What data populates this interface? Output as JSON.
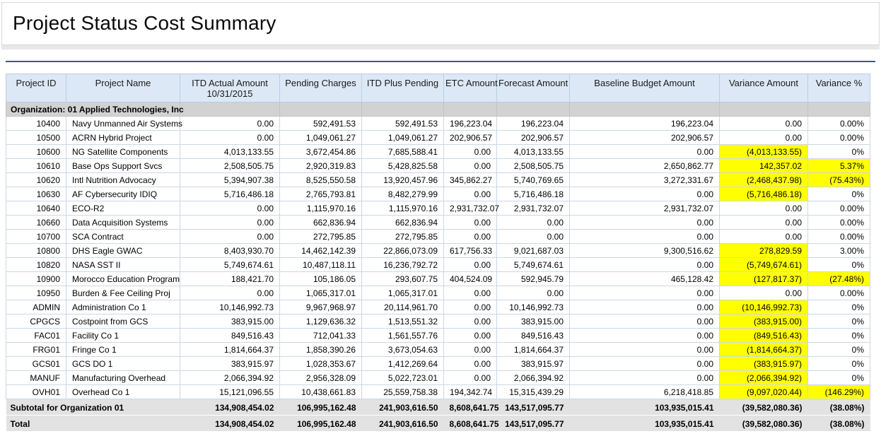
{
  "page": {
    "title": "Project Status Cost Summary"
  },
  "colors": {
    "highlight": "#ffff00",
    "header_bg": "#dce8f5",
    "accent_line": "#2d607e",
    "org_band": "#d2d2d2",
    "summary_band": "#e2e2e2"
  },
  "table": {
    "org_header": "Organization: 01 Applied Technologies, Inc",
    "columns": [
      {
        "label": "Project ID",
        "sublabel": ""
      },
      {
        "label": "Project Name",
        "sublabel": ""
      },
      {
        "label": "ITD Actual Amount",
        "sublabel": "10/31/2015"
      },
      {
        "label": "Pending Charges",
        "sublabel": ""
      },
      {
        "label": "ITD Plus Pending",
        "sublabel": ""
      },
      {
        "label": "ETC Amount",
        "sublabel": ""
      },
      {
        "label": "Forecast Amount",
        "sublabel": ""
      },
      {
        "label": "Baseline Budget Amount",
        "sublabel": ""
      },
      {
        "label": "Variance Amount",
        "sublabel": ""
      },
      {
        "label": "Variance %",
        "sublabel": ""
      }
    ],
    "rows": [
      {
        "project_id": "10400",
        "project_name": "Navy Unmanned Air Systems",
        "itd_actual": "0.00",
        "pending_charges": "592,491.53",
        "itd_plus_pending": "592,491.53",
        "etc_amount": "196,223.04",
        "forecast": "196,223.04",
        "baseline_budget": "196,223.04",
        "variance_amount": "0.00",
        "variance_pct": "0.00%",
        "variance_highlight": false,
        "pct_highlight": false
      },
      {
        "project_id": "10500",
        "project_name": "ACRN Hybrid Project",
        "itd_actual": "0.00",
        "pending_charges": "1,049,061.27",
        "itd_plus_pending": "1,049,061.27",
        "etc_amount": "202,906.57",
        "forecast": "202,906.57",
        "baseline_budget": "202,906.57",
        "variance_amount": "0.00",
        "variance_pct": "0.00%",
        "variance_highlight": false,
        "pct_highlight": false
      },
      {
        "project_id": "10600",
        "project_name": "NG Satellite Components",
        "itd_actual": "4,013,133.55",
        "pending_charges": "3,672,454.86",
        "itd_plus_pending": "7,685,588.41",
        "etc_amount": "0.00",
        "forecast": "4,013,133.55",
        "baseline_budget": "0.00",
        "variance_amount": "(4,013,133.55)",
        "variance_pct": "0%",
        "variance_highlight": true,
        "pct_highlight": false
      },
      {
        "project_id": "10610",
        "project_name": "Base Ops Support Svcs",
        "itd_actual": "2,508,505.75",
        "pending_charges": "2,920,319.83",
        "itd_plus_pending": "5,428,825.58",
        "etc_amount": "0.00",
        "forecast": "2,508,505.75",
        "baseline_budget": "2,650,862.77",
        "variance_amount": "142,357.02",
        "variance_pct": "5.37%",
        "variance_highlight": true,
        "pct_highlight": true
      },
      {
        "project_id": "10620",
        "project_name": "Intl Nutrition Advocacy",
        "itd_actual": "5,394,907.38",
        "pending_charges": "8,525,550.58",
        "itd_plus_pending": "13,920,457.96",
        "etc_amount": "345,862.27",
        "forecast": "5,740,769.65",
        "baseline_budget": "3,272,331.67",
        "variance_amount": "(2,468,437.98)",
        "variance_pct": "(75.43%)",
        "variance_highlight": true,
        "pct_highlight": true
      },
      {
        "project_id": "10630",
        "project_name": "AF Cybersecurity IDIQ",
        "itd_actual": "5,716,486.18",
        "pending_charges": "2,765,793.81",
        "itd_plus_pending": "8,482,279.99",
        "etc_amount": "0.00",
        "forecast": "5,716,486.18",
        "baseline_budget": "0.00",
        "variance_amount": "(5,716,486.18)",
        "variance_pct": "0%",
        "variance_highlight": true,
        "pct_highlight": false
      },
      {
        "project_id": "10640",
        "project_name": "ECO-R2",
        "itd_actual": "0.00",
        "pending_charges": "1,115,970.16",
        "itd_plus_pending": "1,115,970.16",
        "etc_amount": "2,931,732.07",
        "forecast": "2,931,732.07",
        "baseline_budget": "2,931,732.07",
        "variance_amount": "0.00",
        "variance_pct": "0.00%",
        "variance_highlight": false,
        "pct_highlight": false
      },
      {
        "project_id": "10660",
        "project_name": "Data Acquisition Systems",
        "itd_actual": "0.00",
        "pending_charges": "662,836.94",
        "itd_plus_pending": "662,836.94",
        "etc_amount": "0.00",
        "forecast": "0.00",
        "baseline_budget": "0.00",
        "variance_amount": "0.00",
        "variance_pct": "0.00%",
        "variance_highlight": false,
        "pct_highlight": false
      },
      {
        "project_id": "10700",
        "project_name": "SCA Contract",
        "itd_actual": "0.00",
        "pending_charges": "272,795.85",
        "itd_plus_pending": "272,795.85",
        "etc_amount": "0.00",
        "forecast": "0.00",
        "baseline_budget": "0.00",
        "variance_amount": "0.00",
        "variance_pct": "0.00%",
        "variance_highlight": false,
        "pct_highlight": false
      },
      {
        "project_id": "10800",
        "project_name": "DHS Eagle GWAC",
        "itd_actual": "8,403,930.70",
        "pending_charges": "14,462,142.39",
        "itd_plus_pending": "22,866,073.09",
        "etc_amount": "617,756.33",
        "forecast": "9,021,687.03",
        "baseline_budget": "9,300,516.62",
        "variance_amount": "278,829.59",
        "variance_pct": "3.00%",
        "variance_highlight": true,
        "pct_highlight": false
      },
      {
        "project_id": "10820",
        "project_name": "NASA SST II",
        "itd_actual": "5,749,674.61",
        "pending_charges": "10,487,118.11",
        "itd_plus_pending": "16,236,792.72",
        "etc_amount": "0.00",
        "forecast": "5,749,674.61",
        "baseline_budget": "0.00",
        "variance_amount": "(5,749,674.61)",
        "variance_pct": "0%",
        "variance_highlight": true,
        "pct_highlight": false
      },
      {
        "project_id": "10900",
        "project_name": "Morocco Education Program",
        "itd_actual": "188,421.70",
        "pending_charges": "105,186.05",
        "itd_plus_pending": "293,607.75",
        "etc_amount": "404,524.09",
        "forecast": "592,945.79",
        "baseline_budget": "465,128.42",
        "variance_amount": "(127,817.37)",
        "variance_pct": "(27.48%)",
        "variance_highlight": true,
        "pct_highlight": true
      },
      {
        "project_id": "10950",
        "project_name": "Burden & Fee Ceiling Proj",
        "itd_actual": "0.00",
        "pending_charges": "1,065,317.01",
        "itd_plus_pending": "1,065,317.01",
        "etc_amount": "0.00",
        "forecast": "0.00",
        "baseline_budget": "0.00",
        "variance_amount": "0.00",
        "variance_pct": "0.00%",
        "variance_highlight": false,
        "pct_highlight": false
      },
      {
        "project_id": "ADMIN",
        "project_name": "Administration Co 1",
        "itd_actual": "10,146,992.73",
        "pending_charges": "9,967,968.97",
        "itd_plus_pending": "20,114,961.70",
        "etc_amount": "0.00",
        "forecast": "10,146,992.73",
        "baseline_budget": "0.00",
        "variance_amount": "(10,146,992.73)",
        "variance_pct": "0%",
        "variance_highlight": true,
        "pct_highlight": false
      },
      {
        "project_id": "CPGCS",
        "project_name": "Costpoint from GCS",
        "itd_actual": "383,915.00",
        "pending_charges": "1,129,636.32",
        "itd_plus_pending": "1,513,551.32",
        "etc_amount": "0.00",
        "forecast": "383,915.00",
        "baseline_budget": "0.00",
        "variance_amount": "(383,915.00)",
        "variance_pct": "0%",
        "variance_highlight": true,
        "pct_highlight": false
      },
      {
        "project_id": "FAC01",
        "project_name": "Facility Co 1",
        "itd_actual": "849,516.43",
        "pending_charges": "712,041.33",
        "itd_plus_pending": "1,561,557.76",
        "etc_amount": "0.00",
        "forecast": "849,516.43",
        "baseline_budget": "0.00",
        "variance_amount": "(849,516.43)",
        "variance_pct": "0%",
        "variance_highlight": true,
        "pct_highlight": false
      },
      {
        "project_id": "FRG01",
        "project_name": "Fringe Co 1",
        "itd_actual": "1,814,664.37",
        "pending_charges": "1,858,390.26",
        "itd_plus_pending": "3,673,054.63",
        "etc_amount": "0.00",
        "forecast": "1,814,664.37",
        "baseline_budget": "0.00",
        "variance_amount": "(1,814,664.37)",
        "variance_pct": "0%",
        "variance_highlight": true,
        "pct_highlight": false
      },
      {
        "project_id": "GCS01",
        "project_name": "GCS DO 1",
        "itd_actual": "383,915.97",
        "pending_charges": "1,028,353.67",
        "itd_plus_pending": "1,412,269.64",
        "etc_amount": "0.00",
        "forecast": "383,915.97",
        "baseline_budget": "0.00",
        "variance_amount": "(383,915.97)",
        "variance_pct": "0%",
        "variance_highlight": true,
        "pct_highlight": false
      },
      {
        "project_id": "MANUF",
        "project_name": "Manufacturing Overhead",
        "itd_actual": "2,066,394.92",
        "pending_charges": "2,956,328.09",
        "itd_plus_pending": "5,022,723.01",
        "etc_amount": "0.00",
        "forecast": "2,066,394.92",
        "baseline_budget": "0.00",
        "variance_amount": "(2,066,394.92)",
        "variance_pct": "0%",
        "variance_highlight": true,
        "pct_highlight": false
      },
      {
        "project_id": "OVH01",
        "project_name": "Overhead Co 1",
        "itd_actual": "15,121,096.55",
        "pending_charges": "10,438,661.83",
        "itd_plus_pending": "25,559,758.38",
        "etc_amount": "194,342.74",
        "forecast": "15,315,439.29",
        "baseline_budget": "6,218,418.85",
        "variance_amount": "(9,097,020.44)",
        "variance_pct": "(146.29%)",
        "variance_highlight": true,
        "pct_highlight": true
      }
    ],
    "subtotal": {
      "label": "Subtotal for Organization 01",
      "itd_actual": "134,908,454.02",
      "pending_charges": "106,995,162.48",
      "itd_plus_pending": "241,903,616.50",
      "etc_amount": "8,608,641.75",
      "forecast": "143,517,095.77",
      "baseline_budget": "103,935,015.41",
      "variance_amount": "(39,582,080.36)",
      "variance_pct": "(38.08%)"
    },
    "total": {
      "label": "Total",
      "itd_actual": "134,908,454.02",
      "pending_charges": "106,995,162.48",
      "itd_plus_pending": "241,903,616.50",
      "etc_amount": "8,608,641.75",
      "forecast": "143,517,095.77",
      "baseline_budget": "103,935,015.41",
      "variance_amount": "(39,582,080.36)",
      "variance_pct": "(38.08%)"
    }
  }
}
